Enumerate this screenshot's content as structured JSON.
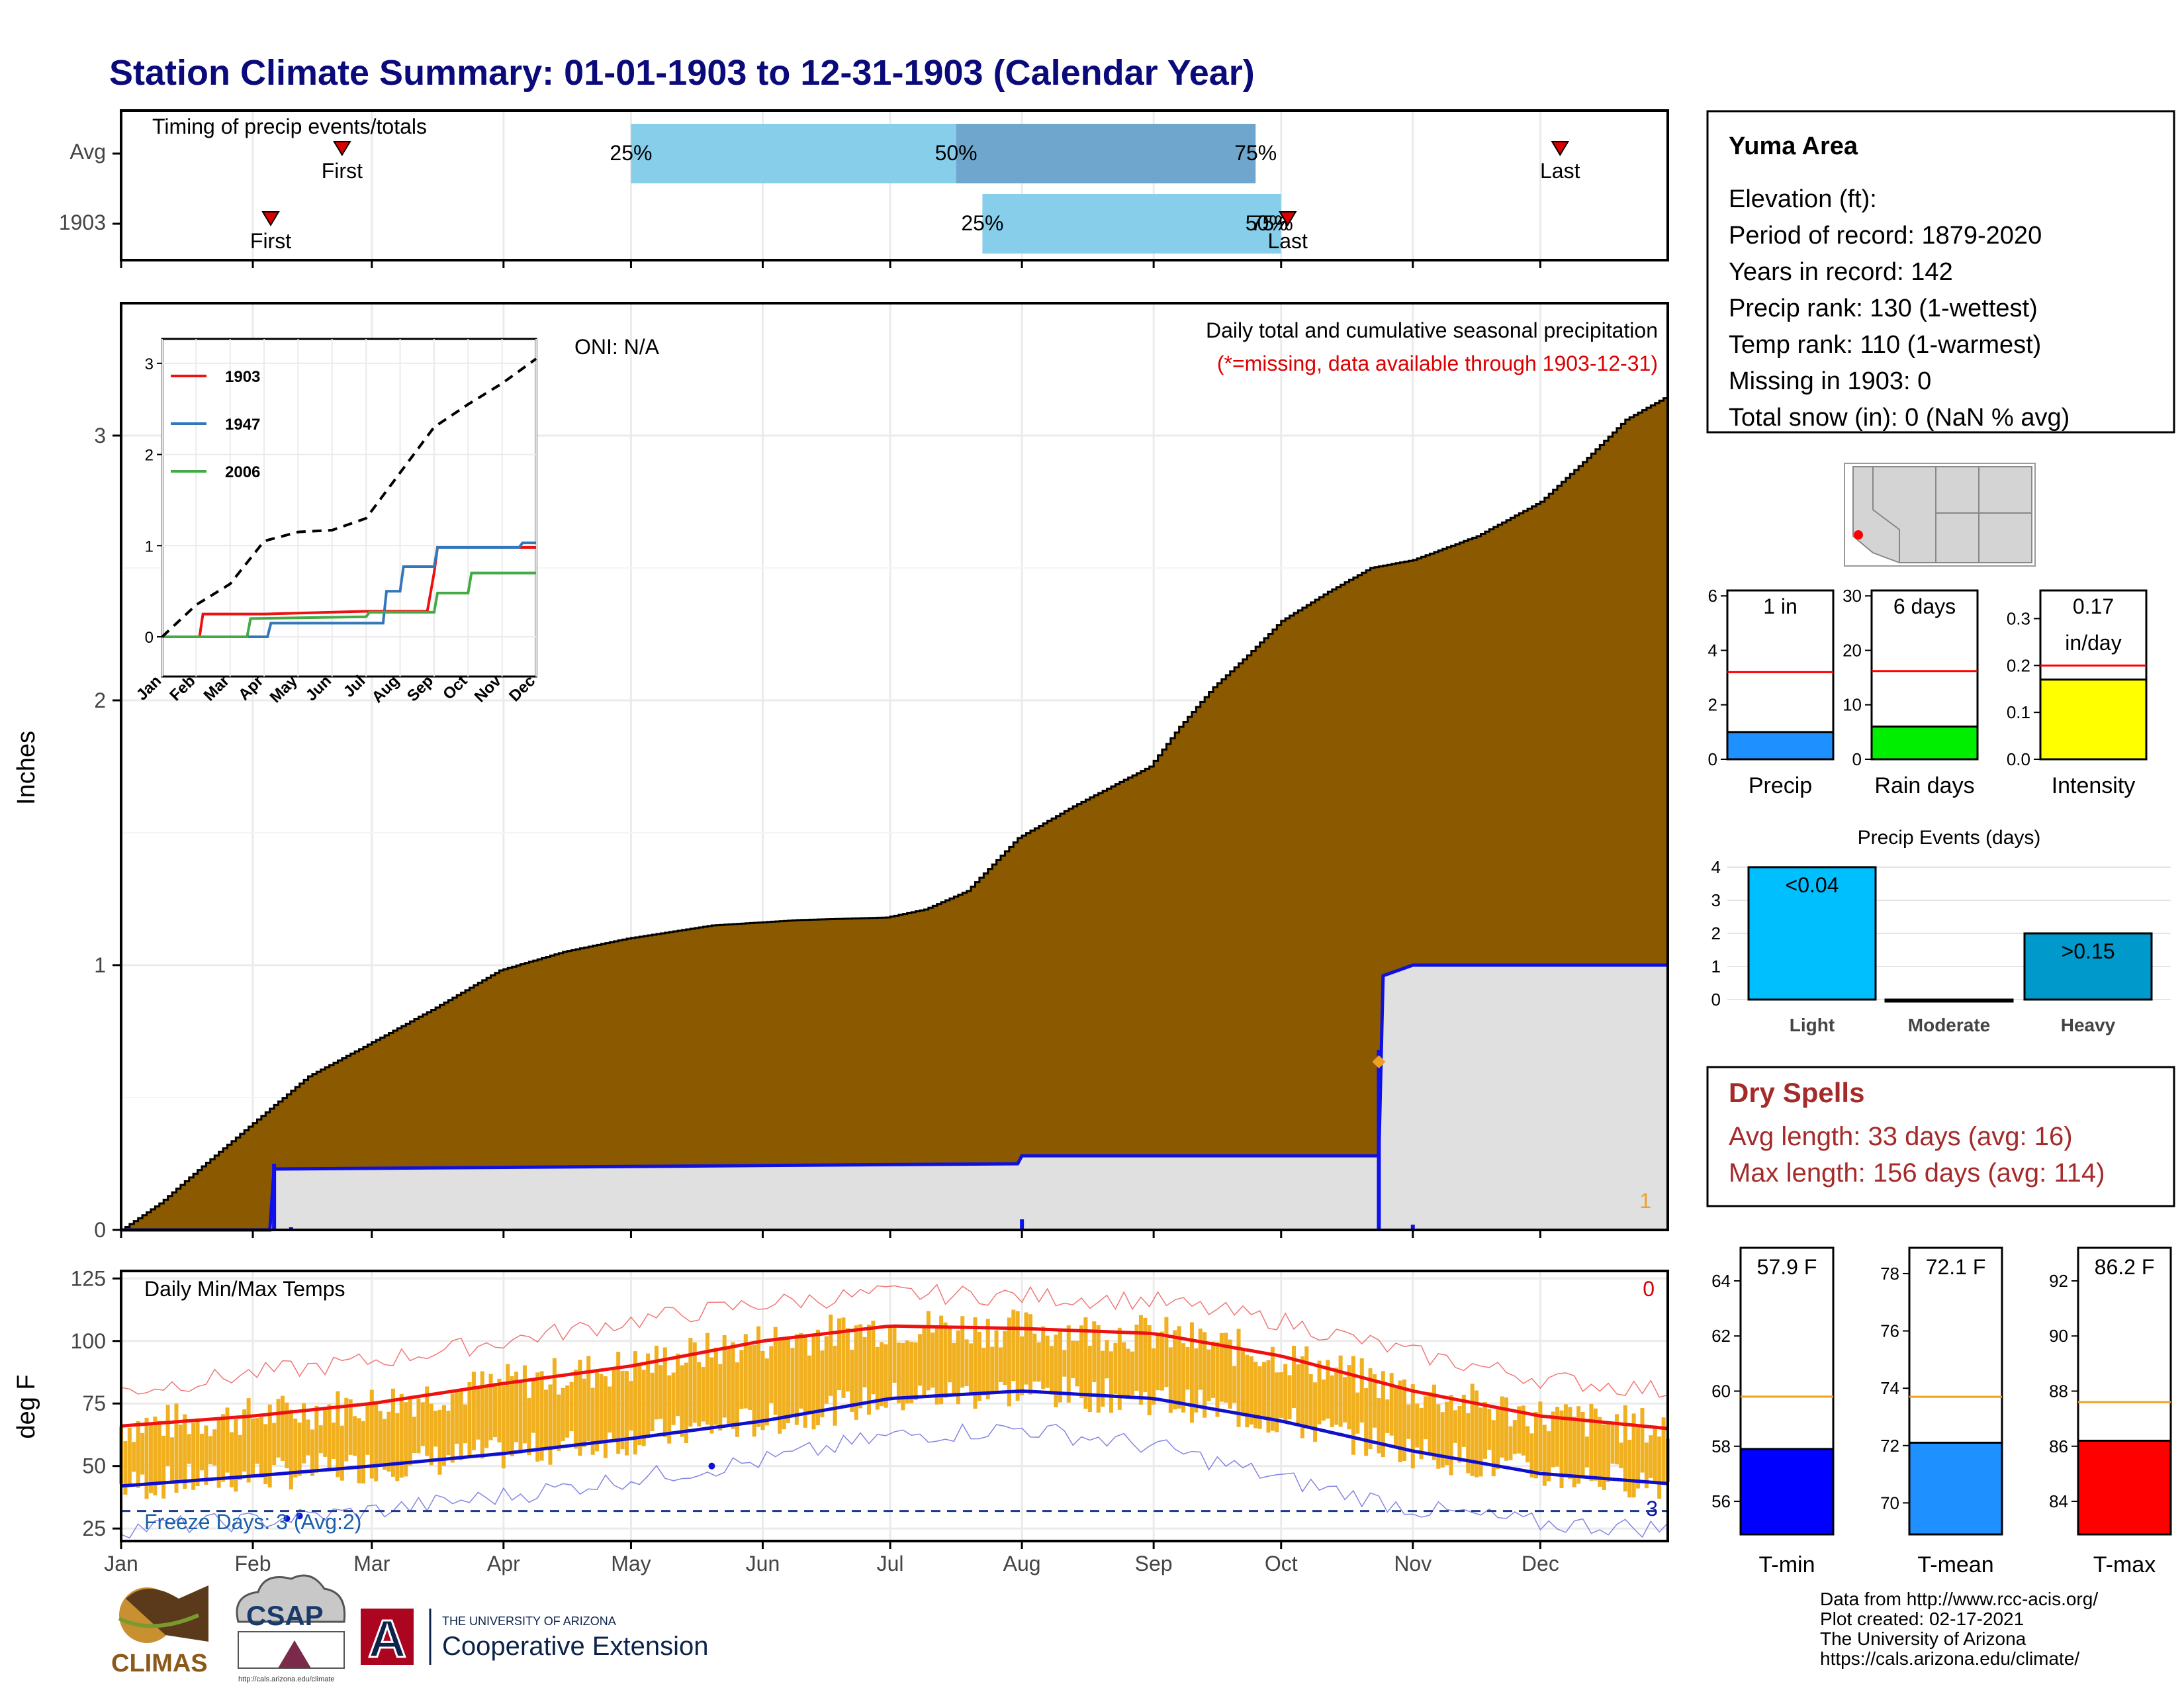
{
  "title": "Station Climate Summary: 01-01-1903 to 12-31-1903 (Calendar Year)",
  "colors": {
    "title": "#0a0a7a",
    "precip_fill": "#8b5a00",
    "avg_fill": "#e0e0e0",
    "avg_line": "#1010dd",
    "bar_light_blue": "#87ceeb",
    "bar_dark_blue": "#6fa6cd",
    "temp_bar": "#f0b020",
    "tmax_line": "#ee1111",
    "tmin_line": "#1010cc",
    "missing_red": "#dd0000",
    "dry_spells": "#a52a2a"
  },
  "timing": {
    "label": "Timing of precip events/totals",
    "rows": [
      {
        "name": "Avg",
        "first_label": "First",
        "last_label": "Last",
        "first_month": 2.75,
        "last_month": 12.15,
        "p25": 5.0,
        "p50": 7.5,
        "p75": 9.8,
        "p25_label": "25%",
        "p50_label": "50%",
        "p75_label": "75%"
      },
      {
        "name": "1903",
        "first_label": "First",
        "last_label": "Last",
        "first_month": 2.15,
        "last_month": 10.05,
        "p25": 7.7,
        "p50": null,
        "p75": 10.0,
        "p25_label": "25%",
        "p75_label": "50%",
        "p75b_label": "75%"
      }
    ]
  },
  "main_panel": {
    "ylabel": "Inches",
    "oni": "ONI: N/A",
    "header": "Daily total and cumulative seasonal precipitation",
    "missing_note": "(*=missing, data available through 1903-12-31)",
    "missing_count": "1",
    "y_ticks": [
      "0",
      "1",
      "2",
      "3"
    ]
  },
  "chart_data": [
    {
      "type": "area",
      "title": "Daily total and cumulative seasonal precipitation",
      "ylabel": "Inches",
      "xlabel": "",
      "ylim": [
        0,
        3.5
      ],
      "series": [
        {
          "name": "1903",
          "x": [
            1,
            10,
            20,
            31,
            45,
            59,
            75,
            90,
            105,
            120,
            140,
            160,
            181,
            190,
            200,
            212,
            225,
            243,
            250,
            258,
            266,
            274,
            285,
            295,
            305,
            320,
            335,
            345,
            355,
            365
          ],
          "y": [
            0.0,
            0.1,
            0.24,
            0.39,
            0.58,
            0.7,
            0.84,
            0.98,
            1.05,
            1.1,
            1.15,
            1.17,
            1.18,
            1.21,
            1.28,
            1.48,
            1.6,
            1.75,
            1.9,
            2.05,
            2.17,
            2.3,
            2.41,
            2.5,
            2.53,
            2.62,
            2.75,
            2.9,
            3.06,
            3.15
          ]
        },
        {
          "name": "avg",
          "x": [
            1,
            36,
            37,
            212,
            213,
            297,
            298,
            305,
            365
          ],
          "y": [
            0.0,
            0.0,
            0.23,
            0.25,
            0.28,
            0.28,
            0.96,
            1.0,
            1.0
          ]
        }
      ]
    },
    {
      "type": "line",
      "title": "",
      "xlabel": "",
      "ylabel": "",
      "ylim": [
        0,
        3.1
      ],
      "categories": [
        "Jan",
        "Feb",
        "Mar",
        "Apr",
        "May",
        "Jun",
        "Jul",
        "Aug",
        "Sep",
        "Oct",
        "Nov",
        "Dec"
      ],
      "series": [
        {
          "name": "1903",
          "color": "#ee1111",
          "x": [
            1.0,
            2.1,
            2.2,
            4.0,
            7.0,
            8.0,
            8.8,
            9.0,
            9.1,
            12.0
          ],
          "y": [
            0.0,
            0.0,
            0.25,
            0.25,
            0.28,
            0.28,
            0.28,
            0.7,
            0.98,
            0.98
          ]
        },
        {
          "name": "1947",
          "color": "#3377bb",
          "x": [
            1.0,
            4.1,
            4.2,
            7.5,
            7.6,
            8.0,
            8.1,
            9.0,
            9.1,
            11.5,
            11.6,
            12.0
          ],
          "y": [
            0.0,
            0.0,
            0.15,
            0.15,
            0.5,
            0.5,
            0.77,
            0.77,
            0.98,
            0.98,
            1.03,
            1.03
          ]
        },
        {
          "name": "2006",
          "color": "#44aa44",
          "x": [
            1.0,
            3.5,
            3.6,
            7.0,
            7.1,
            9.0,
            9.1,
            10.0,
            10.1,
            12.0
          ],
          "y": [
            0.0,
            0.0,
            0.2,
            0.22,
            0.27,
            0.27,
            0.48,
            0.48,
            0.7,
            0.7
          ]
        },
        {
          "name": "avg",
          "x": [
            1.0,
            2.0,
            3.0,
            4.0,
            5.0,
            6.0,
            7.0,
            8.0,
            9.0,
            10.0,
            11.0,
            12.0
          ],
          "y": [
            0.0,
            0.35,
            0.58,
            1.05,
            1.15,
            1.17,
            1.3,
            1.8,
            2.3,
            2.55,
            2.78,
            3.05
          ]
        }
      ],
      "y_ticks": [
        0,
        1,
        2,
        3
      ]
    },
    {
      "type": "line",
      "title": "Daily Min/Max Temps",
      "ylabel": "deg F",
      "ylim": [
        20,
        128
      ],
      "categories": [
        "Jan",
        "Feb",
        "Mar",
        "Apr",
        "May",
        "Jun",
        "Jul",
        "Aug",
        "Sep",
        "Oct",
        "Nov",
        "Dec"
      ],
      "series": [
        {
          "name": "avg tmax",
          "x": [
            1,
            32,
            60,
            91,
            121,
            152,
            182,
            213,
            244,
            274,
            305,
            335,
            365
          ],
          "y": [
            66,
            70,
            75,
            83,
            90,
            100,
            106,
            105,
            103,
            94,
            80,
            70,
            65
          ]
        },
        {
          "name": "avg tmin",
          "x": [
            1,
            32,
            60,
            91,
            121,
            152,
            182,
            213,
            244,
            274,
            305,
            335,
            365
          ],
          "y": [
            42,
            46,
            50,
            55,
            61,
            68,
            77,
            80,
            77,
            68,
            56,
            47,
            43
          ]
        },
        {
          "name": "record high",
          "x": [
            1,
            32,
            60,
            91,
            121,
            152,
            182,
            213,
            244,
            274,
            305,
            335,
            365
          ],
          "y": [
            80,
            87,
            92,
            100,
            108,
            115,
            119,
            118,
            116,
            108,
            95,
            85,
            80
          ]
        },
        {
          "name": "record low",
          "x": [
            1,
            32,
            60,
            91,
            121,
            152,
            182,
            213,
            244,
            274,
            305,
            335,
            365
          ],
          "y": [
            25,
            28,
            32,
            38,
            45,
            52,
            62,
            65,
            58,
            45,
            33,
            27,
            25
          ]
        }
      ],
      "freeze_line": 32
    }
  ],
  "temp_panel": {
    "ylabel": "deg F",
    "title": "Daily Min/Max Temps",
    "missing_count": "0",
    "freeze_label": "Freeze Days: 3 (Avg:2)",
    "freeze_count": "3",
    "y_ticks": [
      "25",
      "50",
      "75",
      "100",
      "125"
    ],
    "months": [
      "Jan",
      "Feb",
      "Mar",
      "Apr",
      "May",
      "Jun",
      "Jul",
      "Aug",
      "Sep",
      "Oct",
      "Nov",
      "Dec"
    ]
  },
  "inset": {
    "legend": [
      "1903",
      "1947",
      "2006"
    ],
    "y_ticks": [
      "0",
      "1",
      "2",
      "3"
    ],
    "months": [
      "Jan",
      "Feb",
      "Mar",
      "Apr",
      "May",
      "Jun",
      "Jul",
      "Aug",
      "Sep",
      "Oct",
      "Nov",
      "Dec"
    ]
  },
  "station": {
    "name": "Yuma Area",
    "lines": [
      "Elevation (ft):",
      "Period of record: 1879-2020",
      "Years in record: 142",
      "Precip rank: 130 (1-wettest)",
      "Temp rank: 110 (1-warmest)",
      "Missing in 1903: 0",
      "Total snow (in): 0 (NaN % avg)"
    ]
  },
  "mini_bars": [
    {
      "label": "Precip",
      "value_label": "1 in",
      "value": 1.0,
      "avg": 3.2,
      "ymax": 6.2,
      "ticks": [
        "0",
        "2",
        "4",
        "6"
      ],
      "tick_vals": [
        0,
        2,
        4,
        6
      ],
      "color": "#1e90ff"
    },
    {
      "label": "Rain days",
      "value_label": "6 days",
      "value": 6,
      "avg": 16.2,
      "ymax": 31,
      "ticks": [
        "0",
        "10",
        "20",
        "30"
      ],
      "tick_vals": [
        0,
        10,
        20,
        30
      ],
      "color": "#00ee00"
    },
    {
      "label": "Intensity",
      "value_label": "0.17",
      "value_label2": "in/day",
      "value": 0.17,
      "avg": 0.2,
      "ymax": 0.36,
      "ticks": [
        "0.0",
        "0.1",
        "0.2",
        "0.3"
      ],
      "tick_vals": [
        0,
        0.1,
        0.2,
        0.3
      ],
      "color": "#ffff00"
    }
  ],
  "precip_events": {
    "title": "Precip Events (days)",
    "y_ticks": [
      "0",
      "1",
      "2",
      "3",
      "4"
    ],
    "bars": [
      {
        "label": "Light",
        "value": 4,
        "value_label": "<0.04",
        "color": "#00bfff"
      },
      {
        "label": "Moderate",
        "value": 0,
        "value_label": "",
        "color": "#1e90ff"
      },
      {
        "label": "Heavy",
        "value": 2,
        "value_label": ">0.15",
        "color": "#0099cc"
      }
    ]
  },
  "dry_spells": {
    "title": "Dry Spells",
    "avg": "Avg length: 33 days (avg: 16)",
    "max": "Max length: 156 days (avg: 114)"
  },
  "temp_bars": [
    {
      "label": "T-min",
      "value_label": "57.9 F",
      "value": 57.9,
      "avg": 59.8,
      "ymin": 54.8,
      "ymax": 65.2,
      "ticks": [
        "56",
        "58",
        "60",
        "62",
        "64"
      ],
      "tick_vals": [
        56,
        58,
        60,
        62,
        64
      ],
      "color": "#0000ff"
    },
    {
      "label": "T-mean",
      "value_label": "72.1 F",
      "value": 72.1,
      "avg": 73.7,
      "ymin": 68.9,
      "ymax": 78.9,
      "ticks": [
        "70",
        "72",
        "74",
        "76",
        "78"
      ],
      "tick_vals": [
        70,
        72,
        74,
        76,
        78
      ],
      "color": "#1e90ff"
    },
    {
      "label": "T-max",
      "value_label": "86.2 F",
      "value": 86.2,
      "avg": 87.6,
      "ymin": 82.8,
      "ymax": 93.2,
      "ticks": [
        "84",
        "86",
        "88",
        "90",
        "92"
      ],
      "tick_vals": [
        84,
        86,
        88,
        90,
        92
      ],
      "color": "#ff0000"
    }
  ],
  "credits": [
    "Data from http://www.rcc-acis.org/",
    "Plot created: 02-17-2021",
    "The University of Arizona",
    "https://cals.arizona.edu/climate/"
  ],
  "logos": {
    "climas": "CLIMAS",
    "csap": "CSAP",
    "csap_url": "http://cals.arizona.edu/climate",
    "ua_letter": "A",
    "ua_line1": "THE UNIVERSITY OF ARIZONA",
    "ua_line2": "Cooperative Extension"
  }
}
